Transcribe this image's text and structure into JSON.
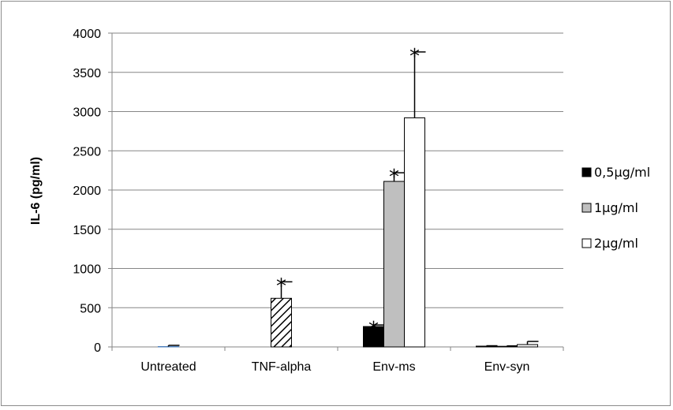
{
  "chart_data": {
    "type": "bar",
    "title": "",
    "xlabel": "",
    "ylabel": "IL-6 (pg/ml)",
    "ylim": [
      0,
      4000
    ],
    "yticks": [
      "0",
      "500",
      "1000",
      "1500",
      "2000",
      "2500",
      "3000",
      "3500",
      "4000"
    ],
    "grid": true,
    "legend_position": "right",
    "categories": [
      "Untreated",
      "TNF-alpha",
      "Env-ms",
      "Env-syn"
    ],
    "series": [
      {
        "name": "",
        "color": "#4f81bd",
        "pattern": "solid",
        "show_in_legend": false,
        "values": [
          5,
          null,
          null,
          null
        ],
        "errors": [
          15,
          null,
          null,
          null
        ],
        "significant": [
          false,
          false,
          false,
          false
        ]
      },
      {
        "name": "",
        "color": "#ffffff",
        "pattern": "hatch",
        "show_in_legend": false,
        "values": [
          null,
          620,
          null,
          null
        ],
        "errors": [
          null,
          210,
          null,
          null
        ],
        "significant": [
          false,
          true,
          false,
          false
        ]
      },
      {
        "name": "0,5µg/ml",
        "color": "#000000",
        "pattern": "solid",
        "show_in_legend": true,
        "values": [
          null,
          null,
          260,
          10
        ],
        "errors": [
          null,
          null,
          20,
          5
        ],
        "significant": [
          false,
          false,
          true,
          false
        ]
      },
      {
        "name": "1µg/ml",
        "color": "#bfbfbf",
        "pattern": "solid",
        "show_in_legend": true,
        "values": [
          null,
          null,
          2110,
          8
        ],
        "errors": [
          null,
          null,
          110,
          5
        ],
        "significant": [
          false,
          false,
          true,
          false
        ]
      },
      {
        "name": "2µg/ml",
        "color": "#ffffff",
        "pattern": "solid",
        "show_in_legend": true,
        "values": [
          null,
          null,
          2920,
          30
        ],
        "errors": [
          null,
          null,
          840,
          40
        ],
        "significant": [
          false,
          false,
          true,
          false
        ]
      }
    ],
    "significance_marker": "*"
  }
}
